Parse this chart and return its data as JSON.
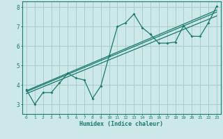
{
  "title": "",
  "xlabel": "Humidex (Indice chaleur)",
  "bg_color": "#cce8e8",
  "grid_color": "#aacccc",
  "line_color": "#1a7a6e",
  "xlim": [
    -0.5,
    23.5
  ],
  "ylim": [
    2.5,
    8.3
  ],
  "xticks": [
    0,
    1,
    2,
    3,
    4,
    5,
    6,
    7,
    8,
    9,
    10,
    11,
    12,
    13,
    14,
    15,
    16,
    17,
    18,
    19,
    20,
    21,
    22,
    23
  ],
  "yticks": [
    3,
    4,
    5,
    6,
    7,
    8
  ],
  "scatter_x": [
    0,
    1,
    2,
    3,
    4,
    5,
    6,
    7,
    8,
    9,
    10,
    11,
    12,
    13,
    14,
    15,
    16,
    17,
    18,
    19,
    20,
    21,
    22,
    23
  ],
  "scatter_y": [
    3.75,
    3.0,
    3.6,
    3.6,
    4.1,
    4.6,
    4.35,
    4.25,
    3.3,
    3.95,
    5.5,
    7.0,
    7.2,
    7.65,
    6.95,
    6.6,
    6.15,
    6.15,
    6.2,
    7.05,
    6.5,
    6.5,
    7.2,
    8.05
  ],
  "line1_x": [
    0,
    23
  ],
  "line1_y": [
    3.55,
    7.55
  ],
  "line2_x": [
    0,
    23
  ],
  "line2_y": [
    3.65,
    7.75
  ],
  "line3_x": [
    0,
    23
  ],
  "line3_y": [
    3.7,
    7.85
  ]
}
